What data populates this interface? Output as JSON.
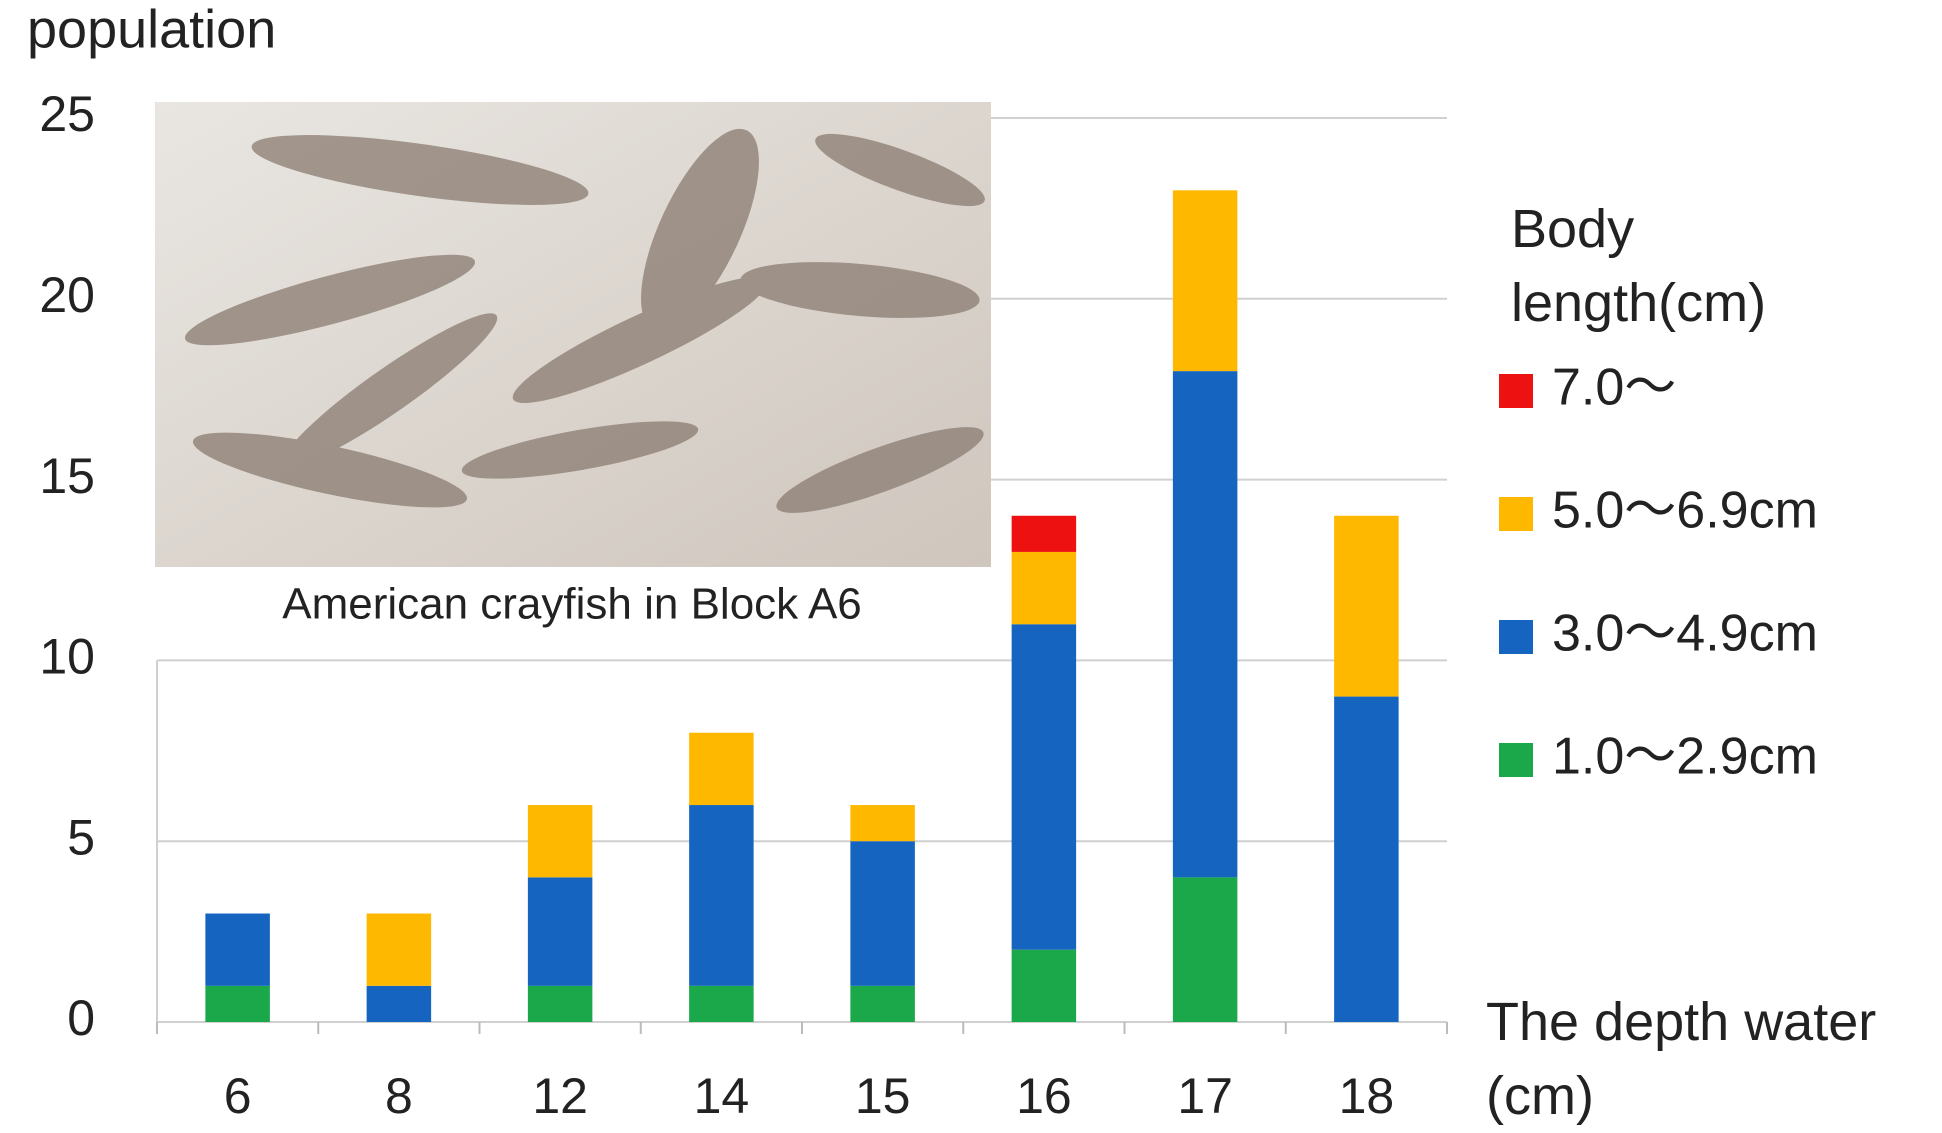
{
  "chart_data": {
    "type": "stacked_bar",
    "y_label": "population",
    "x_label": "The depth water (cm)",
    "legend_title": "Body length(cm)",
    "annotation": "American crayfish in Block A6",
    "categories": [
      "6",
      "8",
      "12",
      "14",
      "15",
      "16",
      "17",
      "18"
    ],
    "series": [
      {
        "name": "1.0〜2.9cm",
        "color": "#1aa84b",
        "values": [
          1,
          0,
          1,
          1,
          1,
          2,
          4,
          0
        ]
      },
      {
        "name": "3.0〜4.9cm",
        "color": "#1565c0",
        "values": [
          2,
          1,
          3,
          5,
          4,
          9,
          14,
          9
        ]
      },
      {
        "name": "5.0〜6.9cm",
        "color": "#ffb800",
        "values": [
          0,
          2,
          2,
          2,
          1,
          2,
          5,
          5
        ]
      },
      {
        "name": "7.0〜",
        "color": "#ee1111",
        "values": [
          0,
          0,
          0,
          0,
          0,
          1,
          0,
          0
        ]
      }
    ],
    "ylim": [
      0,
      25
    ],
    "yticks": [
      0,
      5,
      10,
      15,
      20,
      25
    ],
    "grid": true
  }
}
